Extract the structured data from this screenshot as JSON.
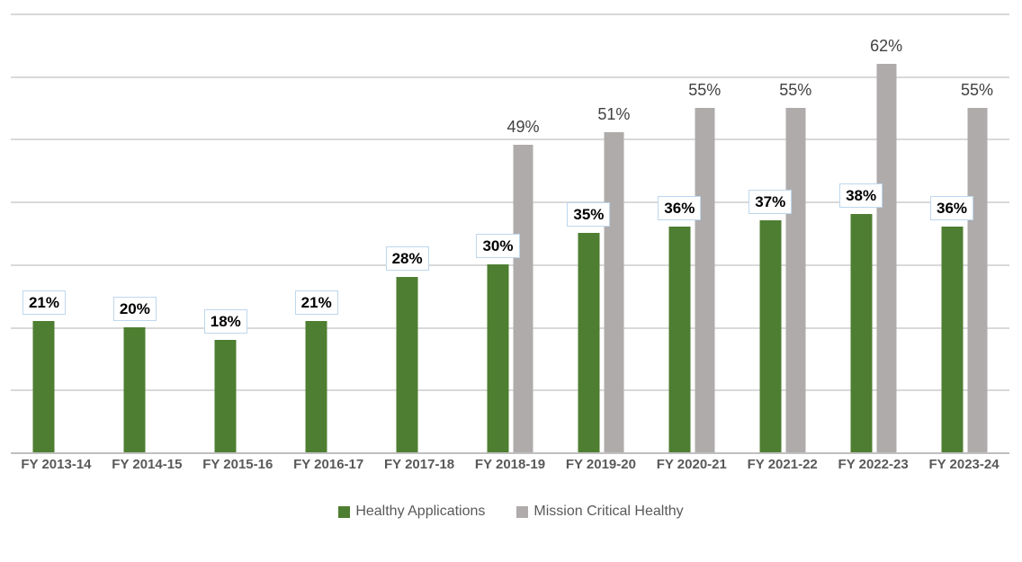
{
  "chart_data": {
    "type": "bar",
    "categories": [
      "FY 2013-14",
      "FY 2014-15",
      "FY 2015-16",
      "FY 2016-17",
      "FY 2017-18",
      "FY 2018-19",
      "FY 2019-20",
      "FY 2020-21",
      "FY 2021-22",
      "FY 2022-23",
      "FY 2023-24"
    ],
    "series": [
      {
        "name": "Healthy Applications",
        "color": "#4e7e31",
        "values": [
          21,
          20,
          18,
          21,
          28,
          30,
          35,
          36,
          37,
          38,
          36
        ],
        "value_labels": [
          "21%",
          "20%",
          "18%",
          "21%",
          "28%",
          "30%",
          "35%",
          "36%",
          "37%",
          "38%",
          "36%"
        ],
        "label_style": "boxed-bold"
      },
      {
        "name": "Mission Critical Healthy",
        "color": "#afabab",
        "values": [
          null,
          null,
          null,
          null,
          null,
          49,
          51,
          55,
          55,
          62,
          55
        ],
        "value_labels": [
          null,
          null,
          null,
          null,
          null,
          "49%",
          "51%",
          "55%",
          "55%",
          "62%",
          "55%"
        ],
        "label_style": "plain"
      }
    ],
    "ylim": [
      0,
      70
    ],
    "gridline_interval": 10,
    "grid": true,
    "y_axis_labels_visible": false,
    "legend_position": "bottom"
  },
  "colors": {
    "green_series": "#4e7e31",
    "gray_series": "#afabab",
    "gridline": "#d9d9d9",
    "axis_line": "#bfbfbf",
    "label_box_border": "#bdd7ee",
    "label_box_bg": "#ffffff",
    "green_label_text": "#000000",
    "gray_label_text": "#404040",
    "axis_label_text": "#595959",
    "legend_text": "#595959"
  }
}
